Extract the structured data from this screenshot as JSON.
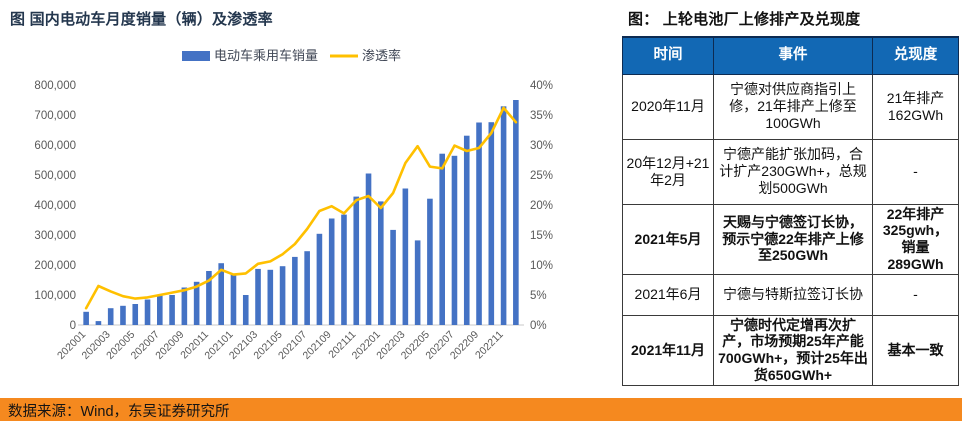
{
  "left_panel": {
    "title": "图 国内电动车月度销量（辆）及渗透率"
  },
  "chart_data": {
    "type": "bar",
    "title": "图 国内电动车月度销量（辆）及渗透率",
    "categories": [
      "202001",
      "202002",
      "202003",
      "202004",
      "202005",
      "202006",
      "202007",
      "202008",
      "202009",
      "202010",
      "202011",
      "202012",
      "202101",
      "202102",
      "202103",
      "202104",
      "202105",
      "202106",
      "202107",
      "202108",
      "202109",
      "202110",
      "202111",
      "202112",
      "202201",
      "202202",
      "202203",
      "202204",
      "202205",
      "202206",
      "202207",
      "202208",
      "202209",
      "202210",
      "202211",
      "202212"
    ],
    "x_tick_every": 2,
    "series": [
      {
        "name": "电动车乘用车销量",
        "type": "bar",
        "axis": "left",
        "color": "#4472C4",
        "values": [
          44000,
          13000,
          56000,
          64000,
          70000,
          85000,
          98000,
          100000,
          125000,
          144000,
          180000,
          206000,
          168000,
          100000,
          187000,
          184000,
          196000,
          227000,
          246000,
          304000,
          355000,
          368000,
          428000,
          505000,
          412000,
          317000,
          455000,
          282000,
          421000,
          571000,
          564000,
          631000,
          675000,
          676000,
          729000,
          750000
        ]
      },
      {
        "name": "渗透率",
        "type": "line",
        "axis": "right",
        "color": "#FFC000",
        "values": [
          2.8,
          6.5,
          5.6,
          4.8,
          4.4,
          4.6,
          5.0,
          5.4,
          5.8,
          6.4,
          7.4,
          9.2,
          8.4,
          8.6,
          10.2,
          10.6,
          11.8,
          13.5,
          16.0,
          19.0,
          19.8,
          18.6,
          20.8,
          21.5,
          19.5,
          22.0,
          27.0,
          29.8,
          26.4,
          26.1,
          29.9,
          29.0,
          29.5,
          32.0,
          36.2,
          33.8
        ]
      }
    ],
    "left_axis": {
      "min": 0,
      "max": 800000,
      "step": 100000,
      "tick_labels": [
        "0",
        "100,000",
        "200,000",
        "300,000",
        "400,000",
        "500,000",
        "600,000",
        "700,000",
        "800,000"
      ]
    },
    "right_axis": {
      "min": 0,
      "max": 40,
      "step": 5,
      "tick_labels": [
        "0%",
        "5%",
        "10%",
        "15%",
        "20%",
        "25%",
        "30%",
        "35%",
        "40%"
      ]
    },
    "legend_position": "top",
    "grid": false
  },
  "right_table": {
    "title": "图： 上轮电池厂上修排产及兑现度",
    "headers": [
      "时间",
      "事件",
      "兑现度"
    ],
    "rows": [
      {
        "time": "2020年11月",
        "event": "宁德对供应商指引上修，21年排产上修至100GWh",
        "fulfillment": "21年排产162GWh",
        "bold": false
      },
      {
        "time": "20年12月+21年2月",
        "event": "宁德产能扩张加码，合计扩产230GWh+，总规划500GWh",
        "fulfillment": "-",
        "bold": false
      },
      {
        "time": "2021年5月",
        "event": "天赐与宁德签订长协，预示宁德22年排产上修至250GWh",
        "fulfillment": "22年排产325gwh，销量289GWh",
        "bold": true
      },
      {
        "time": "2021年6月",
        "event": "宁德与特斯拉签订长协",
        "fulfillment": "-",
        "bold": false
      },
      {
        "time": "2021年11月",
        "event": "宁德时代定增再次扩产，市场预期25年产能700GWh+，预计25年出货650GWh+",
        "fulfillment": "基本一致",
        "bold": true
      }
    ]
  },
  "footer": {
    "source_text": "数据来源：Wind，东吴证券研究所"
  },
  "colors": {
    "bar": "#4472C4",
    "line": "#FFC000",
    "axis_text": "#595959",
    "axis_line": "#C9C9C9",
    "left_title": "#24374E",
    "right_title": "#111111",
    "table_header_bg": "#1268B4",
    "table_header_text": "#FFFFFF",
    "table_border": "#3a3a3a",
    "footer_bg": "#F5891F",
    "footer_text": "#141414",
    "legend_text": "#404756"
  }
}
